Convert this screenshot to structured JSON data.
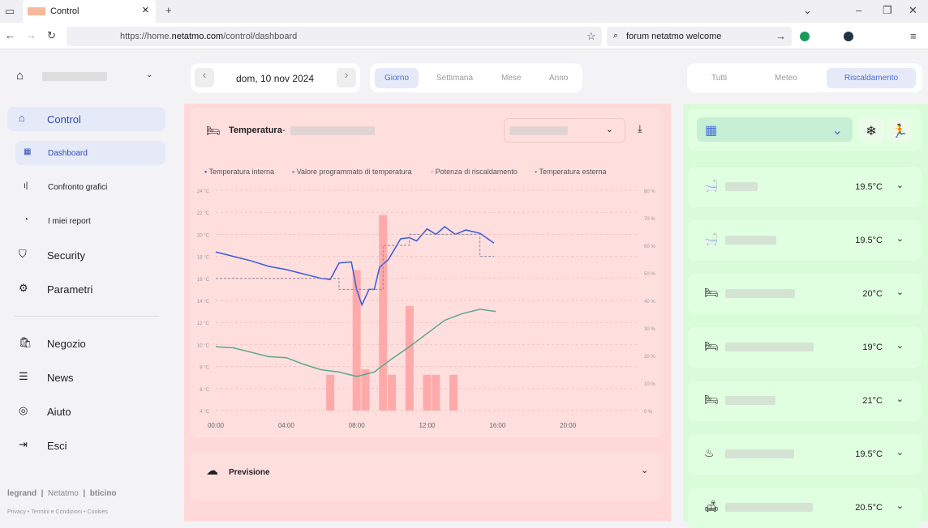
{
  "browser": {
    "tab_title": "Control",
    "url_prefix": "https://home.",
    "url_domain": "netatmo.com",
    "url_path": "/control/dashboard",
    "search": "forum netatmo welcome"
  },
  "sidebar": {
    "items": [
      {
        "label": "Control",
        "icon": "control-icon"
      },
      {
        "label": "Dashboard",
        "icon": "grid-icon"
      },
      {
        "label": "Confronto grafici",
        "icon": "bar-chart-icon"
      },
      {
        "label": "I miei report",
        "icon": "pie-chart-icon"
      },
      {
        "label": "Security",
        "icon": "shield-icon"
      },
      {
        "label": "Parametri",
        "icon": "gear-icon"
      },
      {
        "label": "Negozio",
        "icon": "shopping-bag-icon"
      },
      {
        "label": "News",
        "icon": "news-icon"
      },
      {
        "label": "Aiuto",
        "icon": "lifebuoy-icon"
      },
      {
        "label": "Esci",
        "icon": "logout-icon"
      }
    ],
    "brands": [
      "legrand",
      "Netatmo",
      "bticino"
    ],
    "footer": [
      "Privacy",
      "Termini e Condizioni",
      "Cookies"
    ]
  },
  "date": {
    "label": "dom, 10 nov 2024"
  },
  "periods": [
    {
      "label": "Giorno",
      "active": true
    },
    {
      "label": "Settimana"
    },
    {
      "label": "Mese"
    },
    {
      "label": "Anno"
    }
  ],
  "filters": [
    {
      "label": "Tutti"
    },
    {
      "label": "Meteo"
    },
    {
      "label": "Riscaldamento",
      "active": true
    }
  ],
  "panel": {
    "title": "Temperatura",
    "sep": "-",
    "forecast": "Previsione"
  },
  "chart_data": {
    "type": "line",
    "x_ticks": [
      "00:00",
      "04:00",
      "08:00",
      "12:00",
      "16:00",
      "20:00"
    ],
    "xlim": [
      0,
      24
    ],
    "ylim": [
      4,
      24
    ],
    "y_ticks": [
      "4 °C",
      "6 °C",
      "8 °C",
      "10 °C",
      "12 °C",
      "14 °C",
      "16 °C",
      "18 °C",
      "20 °C",
      "22 °C",
      "24 °C"
    ],
    "y2lim": [
      0,
      80
    ],
    "y2_ticks": [
      "0 %",
      "10 %",
      "20 %",
      "30 %",
      "40 %",
      "50 %",
      "60 %",
      "70 %",
      "80 %"
    ],
    "grid": true,
    "legend": "top",
    "series": [
      {
        "name": "Temperatura interna",
        "color": "#3a5bd9",
        "kind": "line",
        "points": [
          [
            0,
            18.4
          ],
          [
            1,
            18
          ],
          [
            2,
            17.6
          ],
          [
            3,
            17.1
          ],
          [
            4,
            16.8
          ],
          [
            5,
            16.4
          ],
          [
            6,
            16
          ],
          [
            6.5,
            15.9
          ],
          [
            7,
            17.4
          ],
          [
            7.7,
            17.5
          ],
          [
            8,
            15
          ],
          [
            8.3,
            13.6
          ],
          [
            8.7,
            15
          ],
          [
            9,
            15
          ],
          [
            9.3,
            17
          ],
          [
            9.8,
            17.7
          ],
          [
            10.5,
            19.6
          ],
          [
            11,
            19.7
          ],
          [
            11.4,
            19.4
          ],
          [
            12,
            20.5
          ],
          [
            12.5,
            20
          ],
          [
            13,
            20.7
          ],
          [
            13.6,
            20
          ],
          [
            14.2,
            20.4
          ],
          [
            15,
            20.1
          ],
          [
            15.8,
            19.2
          ]
        ]
      },
      {
        "name": "Valore programmato di temperatura",
        "color": "#8a8aa0",
        "kind": "step",
        "points": [
          [
            0,
            16
          ],
          [
            7,
            16
          ],
          [
            7,
            15
          ],
          [
            9.5,
            15
          ],
          [
            9.5,
            19
          ],
          [
            11,
            19
          ],
          [
            11,
            20
          ],
          [
            15,
            20
          ],
          [
            15,
            18
          ],
          [
            15.8,
            18
          ]
        ]
      },
      {
        "name": "Potenza di riscaldamento",
        "color": "#ffaaaa",
        "kind": "bar",
        "axis": "right",
        "points": [
          [
            6.5,
            13
          ],
          [
            8,
            51
          ],
          [
            8.5,
            15
          ],
          [
            9.5,
            71
          ],
          [
            10,
            13
          ],
          [
            11,
            38
          ],
          [
            12,
            13
          ],
          [
            12.5,
            13
          ],
          [
            13.5,
            13
          ]
        ]
      },
      {
        "name": "Temperatura esterna",
        "color": "#5aa88a",
        "kind": "line",
        "points": [
          [
            0,
            9.8
          ],
          [
            1,
            9.7
          ],
          [
            2,
            9.3
          ],
          [
            3,
            8.9
          ],
          [
            4,
            8.8
          ],
          [
            5,
            8.2
          ],
          [
            6,
            7.7
          ],
          [
            7,
            7.5
          ],
          [
            8,
            7.1
          ],
          [
            9,
            7.5
          ],
          [
            10,
            8.7
          ],
          [
            11,
            9.8
          ],
          [
            12,
            11
          ],
          [
            13,
            12.2
          ],
          [
            14,
            12.8
          ],
          [
            15,
            13.2
          ],
          [
            15.9,
            13
          ]
        ]
      }
    ]
  },
  "rooms": [
    {
      "temp": "19.5°C",
      "icon": "bathtub-icon"
    },
    {
      "temp": "19.5°C",
      "icon": "bathtub-icon"
    },
    {
      "temp": "20°C",
      "icon": "bed-icon"
    },
    {
      "temp": "19°C",
      "icon": "bed-icon"
    },
    {
      "temp": "21°C",
      "icon": "bed-icon"
    },
    {
      "temp": "19.5°C",
      "icon": "cooking-pot-icon"
    },
    {
      "temp": "20.5°C",
      "icon": "sofa-icon"
    }
  ]
}
